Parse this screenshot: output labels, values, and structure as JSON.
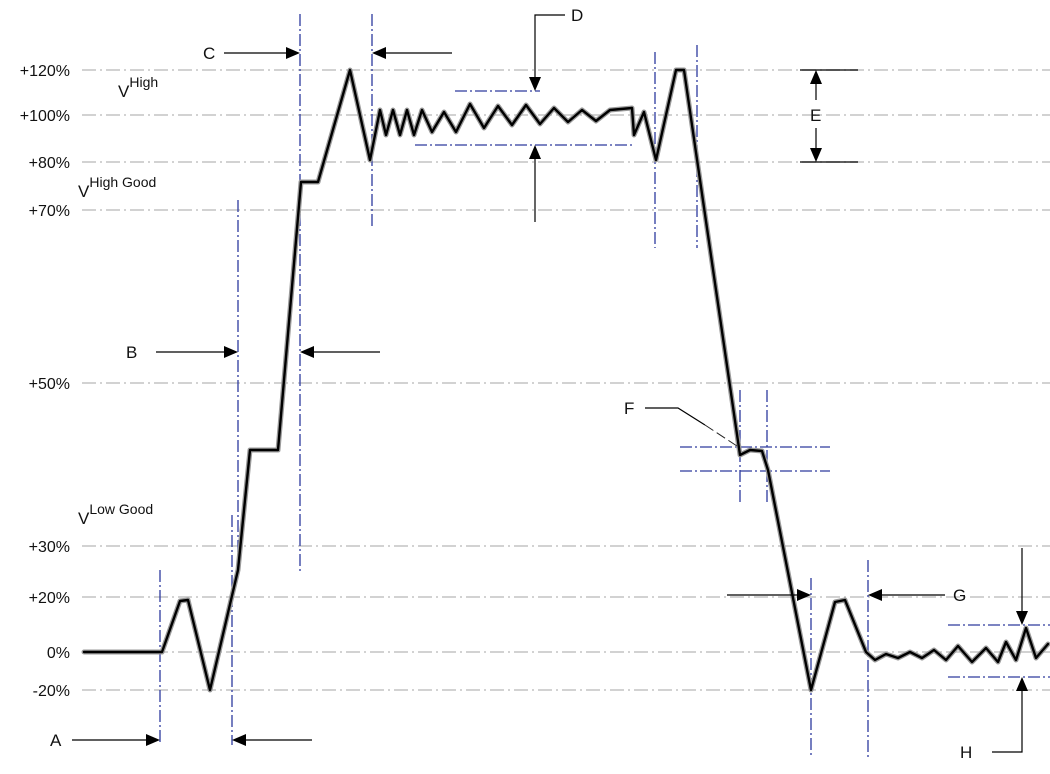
{
  "levels": [
    {
      "label": "+120%",
      "value": 120
    },
    {
      "label": "+100%",
      "value": 100
    },
    {
      "label": "+80%",
      "value": 80
    },
    {
      "label": "+70%",
      "value": 70
    },
    {
      "label": "+50%",
      "value": 50
    },
    {
      "label": "+30%",
      "value": 30
    },
    {
      "label": "+20%",
      "value": 20
    },
    {
      "label": "0%",
      "value": 0
    },
    {
      "label": "-20%",
      "value": -20
    }
  ],
  "voltage_labels": {
    "high": {
      "base": "V",
      "sup": "High"
    },
    "high_good": {
      "base": "V",
      "sup": "High Good"
    },
    "low_good": {
      "base": "V",
      "sup": "Low Good"
    }
  },
  "markers": [
    "A",
    "B",
    "C",
    "D",
    "E",
    "F",
    "G",
    "H"
  ]
}
